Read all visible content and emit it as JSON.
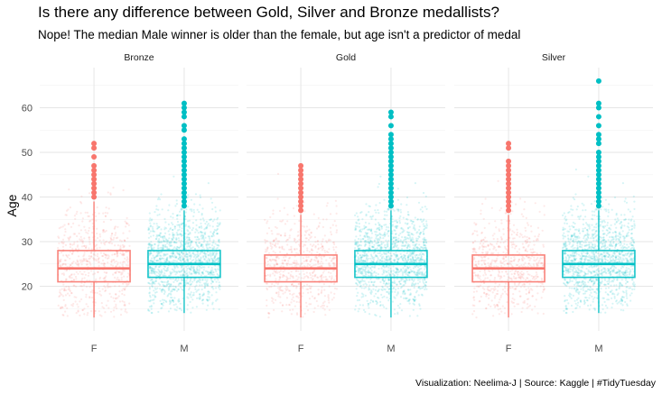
{
  "chart_data": {
    "type": "box",
    "title": "Is there any difference between Gold, Silver and Bronze medallists?",
    "subtitle": "Nope! The median Male winner is older than the female, but age isn't a predictor of medal",
    "caption": "Visualization: Neelima-J | Source: Kaggle | #TidyTuesday",
    "xlabel": "",
    "ylabel": "Age",
    "ylim": [
      10,
      69
    ],
    "yticks": [
      20,
      30,
      40,
      50,
      60
    ],
    "grid": true,
    "legend": "none",
    "facets": [
      "Bronze",
      "Gold",
      "Silver"
    ],
    "categories": [
      "F",
      "M"
    ],
    "colors": {
      "F": "#F8766D",
      "M": "#00BFC4"
    },
    "panels": [
      {
        "facet": "Bronze",
        "boxes": [
          {
            "category": "F",
            "min": 13,
            "q1": 21,
            "median": 24,
            "q3": 28,
            "whisker_high": 39,
            "outliers": [
              40,
              41,
              42,
              43,
              44,
              45,
              46,
              47,
              49,
              51,
              52
            ]
          },
          {
            "category": "M",
            "min": 14,
            "q1": 22,
            "median": 25,
            "q3": 28,
            "whisker_high": 37,
            "outliers": [
              38,
              39,
              40,
              41,
              42,
              43,
              44,
              45,
              46,
              47,
              48,
              49,
              50,
              51,
              52,
              53,
              55,
              56,
              58,
              59,
              60,
              61
            ]
          }
        ]
      },
      {
        "facet": "Gold",
        "boxes": [
          {
            "category": "F",
            "min": 13,
            "q1": 21,
            "median": 24,
            "q3": 27,
            "whisker_high": 36,
            "outliers": [
              37,
              38,
              39,
              40,
              41,
              42,
              43,
              44,
              45,
              46,
              47
            ]
          },
          {
            "category": "M",
            "min": 13,
            "q1": 22,
            "median": 25,
            "q3": 28,
            "whisker_high": 37,
            "outliers": [
              38,
              39,
              40,
              41,
              42,
              43,
              44,
              45,
              46,
              47,
              48,
              49,
              50,
              51,
              52,
              53,
              54,
              56,
              58,
              59
            ]
          }
        ]
      },
      {
        "facet": "Silver",
        "boxes": [
          {
            "category": "F",
            "min": 13,
            "q1": 21,
            "median": 24,
            "q3": 27,
            "whisker_high": 36,
            "outliers": [
              37,
              38,
              39,
              40,
              41,
              42,
              43,
              44,
              45,
              46,
              47,
              48,
              51,
              52
            ]
          },
          {
            "category": "M",
            "min": 14,
            "q1": 22,
            "median": 25,
            "q3": 28,
            "whisker_high": 37,
            "outliers": [
              38,
              39,
              40,
              41,
              42,
              43,
              44,
              45,
              46,
              47,
              48,
              49,
              50,
              52,
              53,
              54,
              56,
              58,
              60,
              61,
              66
            ]
          }
        ]
      }
    ]
  }
}
